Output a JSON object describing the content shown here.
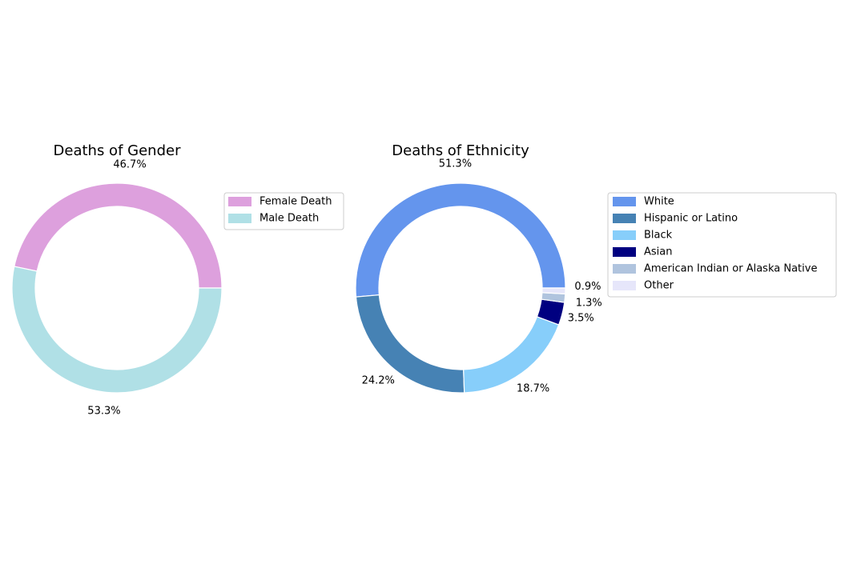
{
  "chart_data": [
    {
      "type": "pie",
      "title": "Deaths of Gender",
      "donut": true,
      "start_angle_deg": 0,
      "direction": "counterclockwise",
      "legend_position": "right",
      "slices": [
        {
          "name": "Female Death",
          "value": 46.7,
          "label": "46.7%",
          "color": "#dda0dd"
        },
        {
          "name": "Male Death",
          "value": 53.3,
          "label": "53.3%",
          "color": "#b0e0e6"
        }
      ]
    },
    {
      "type": "pie",
      "title": "Deaths of Ethnicity",
      "donut": true,
      "start_angle_deg": 0,
      "direction": "counterclockwise",
      "legend_position": "right",
      "slices": [
        {
          "name": "White",
          "value": 51.3,
          "label": "51.3%",
          "color": "#6495ed"
        },
        {
          "name": "Hispanic or Latino",
          "value": 24.2,
          "label": "24.2%",
          "color": "#4682b4"
        },
        {
          "name": "Black",
          "value": 18.7,
          "label": "18.7%",
          "color": "#87cefa"
        },
        {
          "name": "Asian",
          "value": 3.5,
          "label": "3.5%",
          "color": "#000080"
        },
        {
          "name": "American Indian or Alaska Native",
          "value": 1.3,
          "label": "1.3%",
          "color": "#b0c4de"
        },
        {
          "name": "Other",
          "value": 0.9,
          "label": "0.9%",
          "color": "#e6e6fa"
        }
      ]
    }
  ]
}
